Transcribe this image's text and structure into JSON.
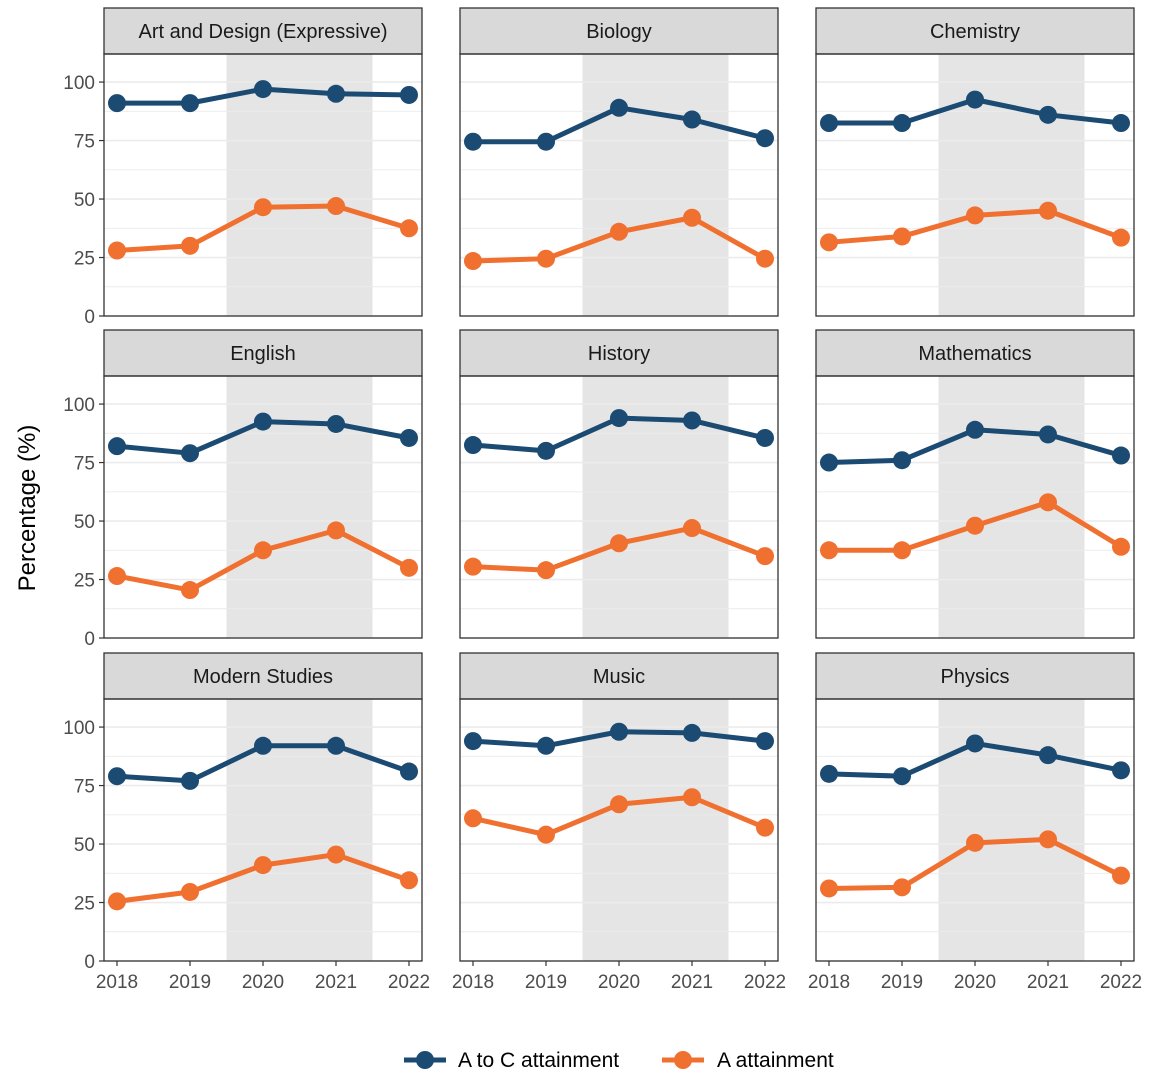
{
  "chart_data": {
    "type": "line",
    "ylabel": "Percentage (%)",
    "xlabel": "",
    "x": [
      "2018",
      "2019",
      "2020",
      "2021",
      "2022"
    ],
    "ylim": [
      0,
      112
    ],
    "yticks": [
      0,
      25,
      50,
      75,
      100
    ],
    "shaded_years": [
      "2020",
      "2021"
    ],
    "grid": true,
    "legend_position": "bottom",
    "series_names": [
      "A to C attainment",
      "A attainment"
    ],
    "colors": {
      "A to C attainment": "#1b4a72",
      "A attainment": "#f07030",
      "shade": "#e5e5e5",
      "strip": "#d9d9d9"
    },
    "panels": [
      {
        "subject": "Art and Design (Expressive)",
        "series": [
          {
            "name": "A to C attainment",
            "values": [
              91,
              91,
              97,
              95,
              94.5
            ]
          },
          {
            "name": "A attainment",
            "values": [
              28,
              30,
              46.5,
              47,
              37.5
            ]
          }
        ]
      },
      {
        "subject": "Biology",
        "series": [
          {
            "name": "A to C attainment",
            "values": [
              74.5,
              74.5,
              89,
              84,
              76
            ]
          },
          {
            "name": "A attainment",
            "values": [
              23.5,
              24.5,
              36,
              42,
              24.5
            ]
          }
        ]
      },
      {
        "subject": "Chemistry",
        "series": [
          {
            "name": "A to C attainment",
            "values": [
              82.5,
              82.5,
              92.5,
              86,
              82.5
            ]
          },
          {
            "name": "A attainment",
            "values": [
              31.5,
              34,
              43,
              45,
              33.5
            ]
          }
        ]
      },
      {
        "subject": "English",
        "series": [
          {
            "name": "A to C attainment",
            "values": [
              82,
              79,
              92.5,
              91.5,
              85.5
            ]
          },
          {
            "name": "A attainment",
            "values": [
              26.5,
              20.5,
              37.5,
              46,
              30
            ]
          }
        ]
      },
      {
        "subject": "History",
        "series": [
          {
            "name": "A to C attainment",
            "values": [
              82.5,
              80,
              94,
              93,
              85.5
            ]
          },
          {
            "name": "A attainment",
            "values": [
              30.5,
              29,
              40.5,
              47,
              35
            ]
          }
        ]
      },
      {
        "subject": "Mathematics",
        "series": [
          {
            "name": "A to C attainment",
            "values": [
              75,
              76,
              89,
              87,
              78
            ]
          },
          {
            "name": "A attainment",
            "values": [
              37.5,
              37.5,
              48,
              58,
              39
            ]
          }
        ]
      },
      {
        "subject": "Modern Studies",
        "series": [
          {
            "name": "A to C attainment",
            "values": [
              79,
              77,
              92,
              92,
              81
            ]
          },
          {
            "name": "A attainment",
            "values": [
              25.5,
              29.5,
              41,
              45.5,
              34.5
            ]
          }
        ]
      },
      {
        "subject": "Music",
        "series": [
          {
            "name": "A to C attainment",
            "values": [
              94,
              92,
              98,
              97.5,
              94
            ]
          },
          {
            "name": "A attainment",
            "values": [
              61,
              54,
              67,
              70,
              57
            ]
          }
        ]
      },
      {
        "subject": "Physics",
        "series": [
          {
            "name": "A to C attainment",
            "values": [
              80,
              79,
              93,
              88,
              81.5
            ]
          },
          {
            "name": "A attainment",
            "values": [
              31,
              31.5,
              50.5,
              52,
              36.5
            ]
          }
        ]
      }
    ]
  }
}
